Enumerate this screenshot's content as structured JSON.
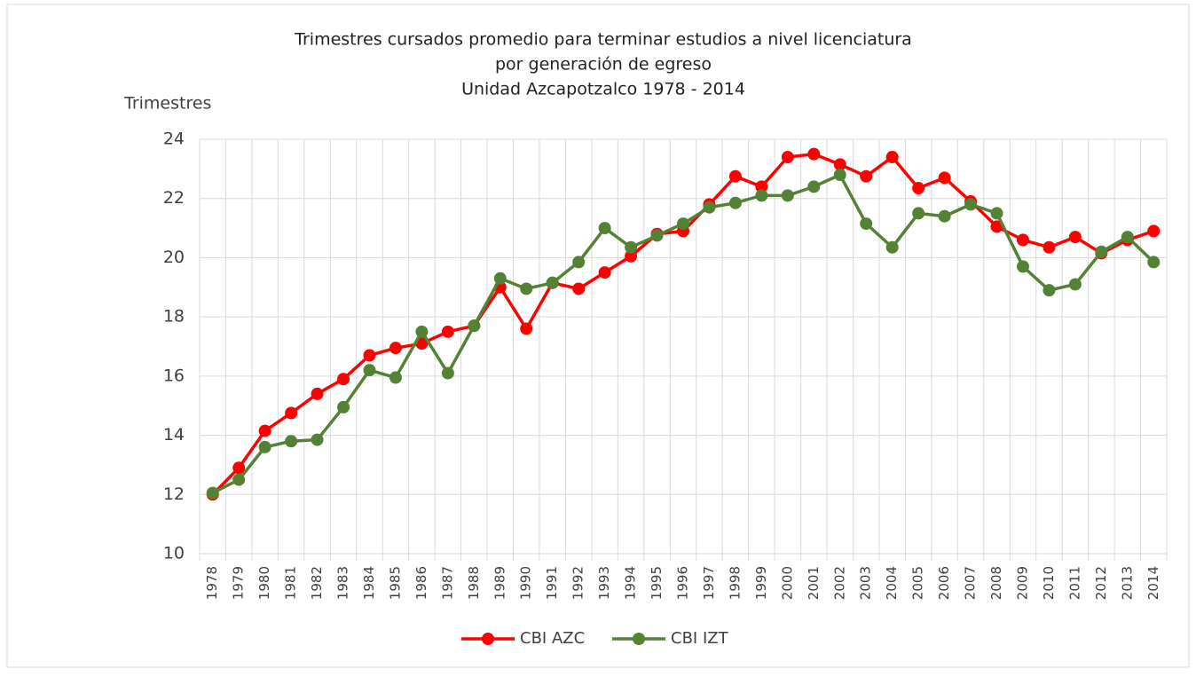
{
  "chart_data": {
    "type": "line",
    "title": [
      "Trimestres cursados promedio para terminar estudios a nivel licenciatura",
      "por generación de egreso",
      "Unidad Azcapotzalco 1978 - 2014"
    ],
    "y_label": "Trimestres",
    "categories": [
      "1978",
      "1979",
      "1980",
      "1981",
      "1982",
      "1983",
      "1984",
      "1985",
      "1986",
      "1987",
      "1988",
      "1989",
      "1990",
      "1991",
      "1992",
      "1993",
      "1994",
      "1995",
      "1996",
      "1997",
      "1998",
      "1999",
      "2000",
      "2001",
      "2002",
      "2003",
      "2004",
      "2005",
      "2006",
      "2007",
      "2008",
      "2009",
      "2010",
      "2011",
      "2012",
      "2013",
      "2014"
    ],
    "series": [
      {
        "name": "CBI AZC",
        "color": "#ff0000",
        "values": [
          12.0,
          12.9,
          14.15,
          14.75,
          15.4,
          15.9,
          16.7,
          16.95,
          17.1,
          17.5,
          17.7,
          19.0,
          17.6,
          19.15,
          18.95,
          19.5,
          20.05,
          20.8,
          20.9,
          21.8,
          22.75,
          22.4,
          23.4,
          23.5,
          23.15,
          22.75,
          23.4,
          22.35,
          22.7,
          21.9,
          21.05,
          20.6,
          20.35,
          20.7,
          20.15,
          20.6,
          20.9
        ]
      },
      {
        "name": "CBI IZT",
        "color": "#548235",
        "values": [
          12.05,
          12.5,
          13.6,
          13.8,
          13.85,
          14.95,
          16.2,
          15.95,
          17.5,
          16.1,
          17.7,
          19.3,
          18.95,
          19.15,
          19.85,
          21.0,
          20.35,
          20.75,
          21.15,
          21.7,
          21.85,
          22.1,
          22.1,
          22.4,
          22.8,
          21.15,
          20.35,
          21.5,
          21.4,
          21.8,
          21.5,
          19.7,
          18.9,
          19.1,
          20.2,
          20.7,
          19.85
        ]
      }
    ],
    "ylim": [
      10,
      24
    ],
    "yticks": [
      10,
      12,
      14,
      16,
      18,
      20,
      22,
      24
    ],
    "grid": true,
    "legend": "bottom"
  }
}
